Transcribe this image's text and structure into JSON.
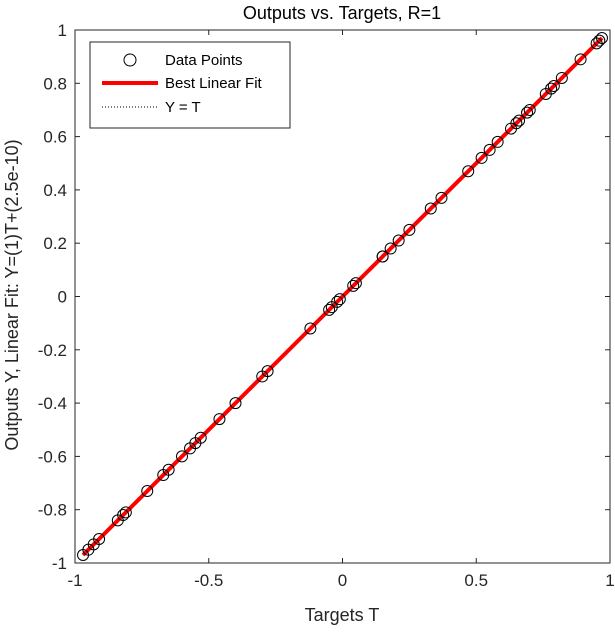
{
  "chart_data": {
    "type": "scatter",
    "title": "Outputs vs. Targets, R=1",
    "xlabel": "Targets T",
    "ylabel": "Outputs Y,  Linear Fit: Y=(1)T+(2.5e-10)",
    "xlim": [
      -1,
      1
    ],
    "ylim": [
      -1,
      1
    ],
    "xticks": [
      -1,
      -0.5,
      0,
      0.5,
      1
    ],
    "xtick_labels": [
      "-1",
      "-0.5",
      "0",
      "0.5",
      "1"
    ],
    "yticks": [
      -1,
      -0.8,
      -0.6,
      -0.4,
      -0.2,
      0,
      0.2,
      0.4,
      0.6,
      0.8,
      1
    ],
    "ytick_labels": [
      "-1",
      "-0.8",
      "-0.6",
      "-0.4",
      "-0.2",
      "0",
      "0.2",
      "0.4",
      "0.6",
      "0.8",
      "1"
    ],
    "grid": false,
    "legend_position": "top-left",
    "legend": [
      {
        "label": "Data Points",
        "marker": "circle",
        "color": "#000000"
      },
      {
        "label": "Best Linear Fit",
        "marker": "line",
        "color": "#ff0000"
      },
      {
        "label": "Y = T",
        "marker": "dotted-line",
        "color": "#000000"
      }
    ],
    "series": [
      {
        "name": "Data Points",
        "type": "scatter",
        "color": "#000000",
        "x": [
          -0.97,
          -0.95,
          -0.93,
          -0.91,
          -0.84,
          -0.82,
          -0.81,
          -0.73,
          -0.67,
          -0.65,
          -0.6,
          -0.57,
          -0.55,
          -0.53,
          -0.46,
          -0.4,
          -0.3,
          -0.28,
          -0.12,
          -0.05,
          -0.04,
          -0.02,
          -0.01,
          0.04,
          0.05,
          0.15,
          0.15,
          0.18,
          0.21,
          0.25,
          0.33,
          0.37,
          0.47,
          0.52,
          0.55,
          0.58,
          0.63,
          0.65,
          0.66,
          0.69,
          0.7,
          0.76,
          0.78,
          0.79,
          0.82,
          0.89,
          0.95,
          0.96,
          0.97
        ],
        "y": [
          -0.97,
          -0.95,
          -0.93,
          -0.91,
          -0.84,
          -0.82,
          -0.81,
          -0.73,
          -0.67,
          -0.65,
          -0.6,
          -0.57,
          -0.55,
          -0.53,
          -0.46,
          -0.4,
          -0.3,
          -0.28,
          -0.12,
          -0.05,
          -0.04,
          -0.02,
          -0.01,
          0.04,
          0.05,
          0.15,
          0.15,
          0.18,
          0.21,
          0.25,
          0.33,
          0.37,
          0.47,
          0.52,
          0.55,
          0.58,
          0.63,
          0.65,
          0.66,
          0.69,
          0.7,
          0.76,
          0.78,
          0.79,
          0.82,
          0.89,
          0.95,
          0.96,
          0.97
        ]
      },
      {
        "name": "Best Linear Fit",
        "type": "line",
        "color": "#ff0000",
        "x": [
          -0.97,
          0.97
        ],
        "y": [
          -0.97,
          0.97
        ]
      },
      {
        "name": "Y = T",
        "type": "line",
        "style": "dotted",
        "color": "#000000",
        "x": [
          -0.97,
          0.97
        ],
        "y": [
          -0.97,
          0.97
        ]
      }
    ]
  }
}
